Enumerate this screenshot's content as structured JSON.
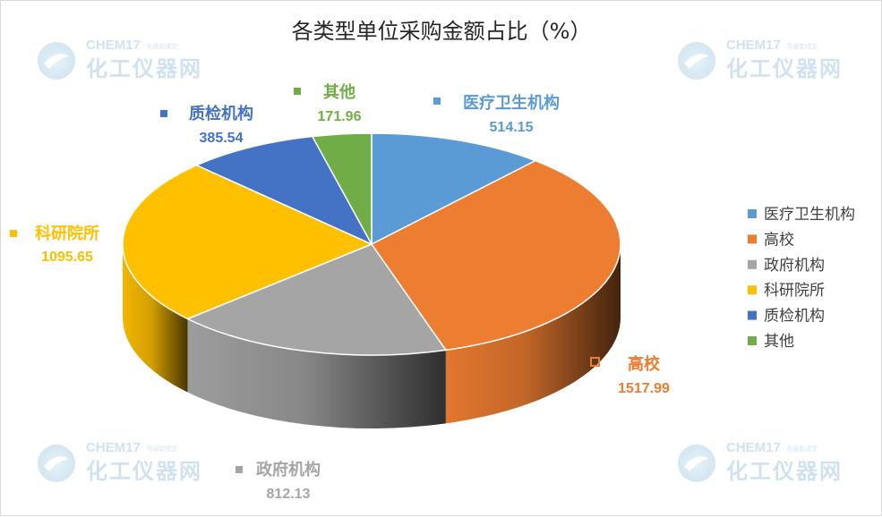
{
  "chart_data": {
    "type": "pie",
    "title": "各类型单位采购金额占比（%）",
    "slices": [
      {
        "name": "医疗卫生机构",
        "value": 514.15,
        "value_label": "514.15",
        "color": "#5B9BD5"
      },
      {
        "name": "高校",
        "value": 1517.99,
        "value_label": "1517.99",
        "color": "#ED7D31"
      },
      {
        "name": "政府机构",
        "value": 812.13,
        "value_label": "812.13",
        "color": "#A5A5A5"
      },
      {
        "name": "科研院所",
        "value": 1095.65,
        "value_label": "1095.65",
        "color": "#FFC000"
      },
      {
        "name": "质检机构",
        "value": 385.54,
        "value_label": "385.54",
        "color": "#4472C4"
      },
      {
        "name": "其他",
        "value": 171.96,
        "value_label": "171.96",
        "color": "#70AD47"
      }
    ],
    "legend": [
      "医疗卫生机构",
      "高校",
      "政府机构",
      "科研院所",
      "质检机构",
      "其他"
    ],
    "legend_position": "right",
    "style": "3d"
  },
  "watermark": {
    "brand": "CHEM17",
    "tagline": "沟通变成交",
    "cn": "化工仪器网"
  }
}
